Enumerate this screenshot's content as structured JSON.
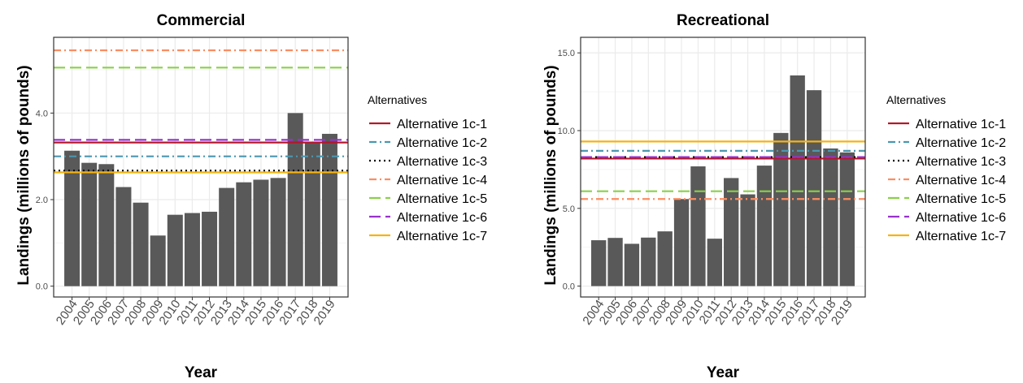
{
  "colors": {
    "bar": "#595959",
    "panel_border": "#333333",
    "grid_major": "#ebebeb",
    "grid_minor": "#f5f5f5",
    "tick_text": "#4d4d4d",
    "text": "#000000"
  },
  "alternatives_legend": {
    "title": "Alternatives",
    "items": [
      {
        "label": "Alternative 1c-1",
        "color": "#b2182b",
        "dash": "solid"
      },
      {
        "label": "Alternative 1c-2",
        "color": "#4a97b0",
        "dash": "dashdot"
      },
      {
        "label": "Alternative 1c-3",
        "color": "#000000",
        "dash": "dotted"
      },
      {
        "label": "Alternative 1c-4",
        "color": "#fc8d62",
        "dash": "dashdot"
      },
      {
        "label": "Alternative 1c-5",
        "color": "#8bd04a",
        "dash": "longdash"
      },
      {
        "label": "Alternative 1c-6",
        "color": "#9932cc",
        "dash": "longdash"
      },
      {
        "label": "Alternative 1c-7",
        "color": "#f5b312",
        "dash": "solid"
      }
    ]
  },
  "chart_data": [
    {
      "type": "bar",
      "title": "Commercial",
      "xlabel": "Year",
      "ylabel": "Landings (millions of pounds)",
      "ylim": [
        -0.25,
        5.75
      ],
      "y_ticks": [
        0.0,
        2.0,
        4.0
      ],
      "y_tick_labels": [
        "0.0",
        "2.0",
        "4.0"
      ],
      "grid": true,
      "legend_position": "right",
      "categories": [
        "2004",
        "2005",
        "2006",
        "2007",
        "2008",
        "2009",
        "2010",
        "2011",
        "2012",
        "2013",
        "2014",
        "2015",
        "2016",
        "2017",
        "2018",
        "2019"
      ],
      "values": [
        3.13,
        2.85,
        2.82,
        2.29,
        1.93,
        1.17,
        1.65,
        1.69,
        1.72,
        2.27,
        2.4,
        2.46,
        2.5,
        4.0,
        3.33,
        3.52
      ],
      "reference_lines": [
        {
          "series": "Alternative 1c-1",
          "value": 3.32
        },
        {
          "series": "Alternative 1c-2",
          "value": 3.0
        },
        {
          "series": "Alternative 1c-3",
          "value": 2.67
        },
        {
          "series": "Alternative 1c-4",
          "value": 5.45
        },
        {
          "series": "Alternative 1c-5",
          "value": 5.05
        },
        {
          "series": "Alternative 1c-6",
          "value": 3.38
        },
        {
          "series": "Alternative 1c-7",
          "value": 2.63
        }
      ]
    },
    {
      "type": "bar",
      "title": "Recreational",
      "xlabel": "Year",
      "ylabel": "Landings (millions of pounds)",
      "ylim": [
        -0.7,
        16.0
      ],
      "y_ticks": [
        0.0,
        5.0,
        10.0,
        15.0
      ],
      "y_tick_labels": [
        "0.0",
        "5.0",
        "10.0",
        "15.0"
      ],
      "grid": true,
      "legend_position": "right",
      "categories": [
        "2004",
        "2005",
        "2006",
        "2007",
        "2008",
        "2009",
        "2010",
        "2011",
        "2012",
        "2013",
        "2014",
        "2015",
        "2016",
        "2017",
        "2018",
        "2019"
      ],
      "values": [
        2.95,
        3.1,
        2.72,
        3.12,
        3.52,
        5.6,
        7.7,
        3.05,
        6.95,
        5.9,
        7.75,
        9.85,
        13.55,
        12.6,
        8.85,
        8.6
      ],
      "reference_lines": [
        {
          "series": "Alternative 1c-1",
          "value": 8.2
        },
        {
          "series": "Alternative 1c-2",
          "value": 8.7
        },
        {
          "series": "Alternative 1c-3",
          "value": 8.3
        },
        {
          "series": "Alternative 1c-4",
          "value": 5.6
        },
        {
          "series": "Alternative 1c-5",
          "value": 6.1
        },
        {
          "series": "Alternative 1c-6",
          "value": 8.3
        },
        {
          "series": "Alternative 1c-7",
          "value": 9.3
        }
      ]
    }
  ]
}
